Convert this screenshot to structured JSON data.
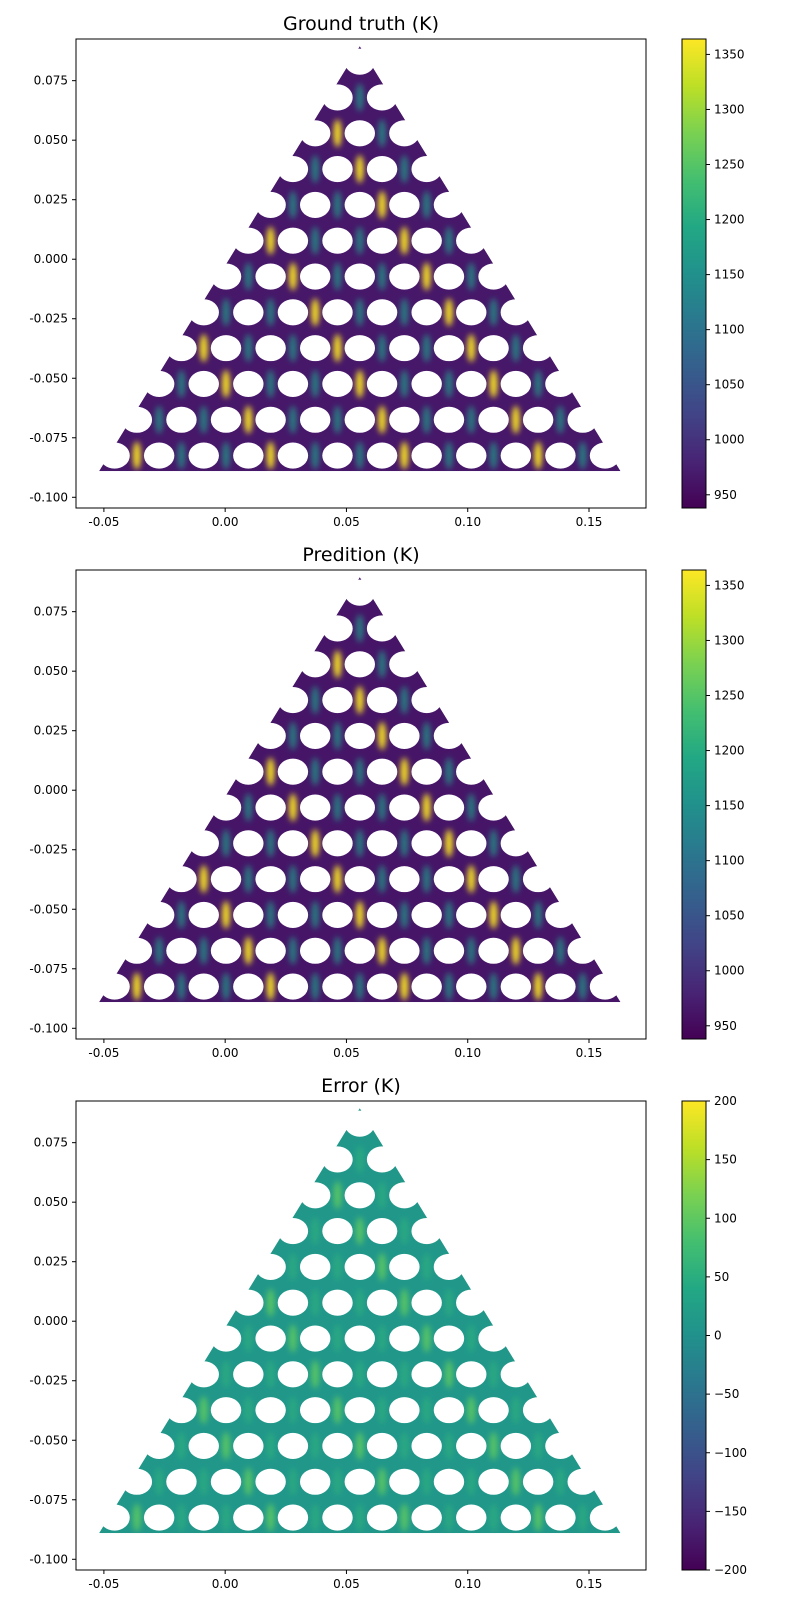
{
  "chart_data": [
    {
      "type": "heatmap",
      "title": "Ground truth (K)",
      "xlabel": "",
      "ylabel": "",
      "xlim": [
        -0.0615,
        0.1735
      ],
      "ylim": [
        -0.1045,
        0.0925
      ],
      "xticks": [
        "-0.05",
        "0.00",
        "0.05",
        "0.10",
        "0.15"
      ],
      "xtick_values": [
        -0.05,
        0.0,
        0.05,
        0.1,
        0.15
      ],
      "yticks": [
        "0.075",
        "0.050",
        "0.025",
        "0.000",
        "-0.025",
        "-0.050",
        "-0.075",
        "-0.100"
      ],
      "ytick_values": [
        0.075,
        0.05,
        0.025,
        0.0,
        -0.025,
        -0.05,
        -0.075,
        -0.1
      ],
      "colorbar": {
        "colormap": "viridis",
        "range": [
          938,
          1364
        ],
        "ticks": [
          "950",
          "1000",
          "1050",
          "1100",
          "1150",
          "1200",
          "1250",
          "1300",
          "1350"
        ],
        "tick_values": [
          950,
          1000,
          1050,
          1100,
          1150,
          1200,
          1250,
          1300,
          1350
        ]
      },
      "field": {
        "base": 965,
        "peak": 1365
      },
      "geometry": {
        "shape": "triangular perforated plate",
        "vertices": [
          [
            -0.052,
            -0.089
          ],
          [
            0.163,
            -0.089
          ],
          [
            0.0555,
            0.0895
          ]
        ],
        "hole_rows": 12,
        "hole_radius": 0.0064
      }
    },
    {
      "type": "heatmap",
      "title": "Predition (K)",
      "xlabel": "",
      "ylabel": "",
      "xlim": [
        -0.0615,
        0.1735
      ],
      "ylim": [
        -0.1045,
        0.0925
      ],
      "xticks": [
        "-0.05",
        "0.00",
        "0.05",
        "0.10",
        "0.15"
      ],
      "xtick_values": [
        -0.05,
        0.0,
        0.05,
        0.1,
        0.15
      ],
      "yticks": [
        "0.075",
        "0.050",
        "0.025",
        "0.000",
        "-0.025",
        "-0.050",
        "-0.075",
        "-0.100"
      ],
      "ytick_values": [
        0.075,
        0.05,
        0.025,
        0.0,
        -0.025,
        -0.05,
        -0.075,
        -0.1
      ],
      "colorbar": {
        "colormap": "viridis",
        "range": [
          938,
          1364
        ],
        "ticks": [
          "950",
          "1000",
          "1050",
          "1100",
          "1150",
          "1200",
          "1250",
          "1300",
          "1350"
        ],
        "tick_values": [
          950,
          1000,
          1050,
          1100,
          1150,
          1200,
          1250,
          1300,
          1350
        ]
      },
      "field": {
        "base": 962,
        "peak": 1365
      },
      "geometry": {
        "shape": "triangular perforated plate",
        "vertices": [
          [
            -0.052,
            -0.089
          ],
          [
            0.163,
            -0.089
          ],
          [
            0.0555,
            0.0895
          ]
        ],
        "hole_rows": 12,
        "hole_radius": 0.0064
      }
    },
    {
      "type": "heatmap",
      "title": "Error (K)",
      "xlabel": "",
      "ylabel": "",
      "xlim": [
        -0.0615,
        0.1735
      ],
      "ylim": [
        -0.1045,
        0.0925
      ],
      "xticks": [
        "-0.05",
        "0.00",
        "0.05",
        "0.10",
        "0.15"
      ],
      "xtick_values": [
        -0.05,
        0.0,
        0.05,
        0.1,
        0.15
      ],
      "yticks": [
        "0.075",
        "0.050",
        "0.025",
        "0.000",
        "-0.025",
        "-0.050",
        "-0.075",
        "-0.100"
      ],
      "ytick_values": [
        0.075,
        0.05,
        0.025,
        0.0,
        -0.025,
        -0.05,
        -0.075,
        -0.1
      ],
      "colorbar": {
        "colormap": "viridis",
        "range": [
          -200,
          200
        ],
        "ticks": [
          "200",
          "150",
          "100",
          "50",
          "0",
          "−50",
          "−100",
          "−150",
          "−200"
        ],
        "tick_values": [
          200,
          150,
          100,
          50,
          0,
          -50,
          -100,
          -150,
          -200
        ]
      },
      "field": {
        "base": 10,
        "peak": 95
      },
      "geometry": {
        "shape": "triangular perforated plate",
        "vertices": [
          [
            -0.052,
            -0.089
          ],
          [
            0.163,
            -0.089
          ],
          [
            0.0555,
            0.0895
          ]
        ],
        "hole_rows": 12,
        "hole_radius": 0.0064
      }
    }
  ]
}
